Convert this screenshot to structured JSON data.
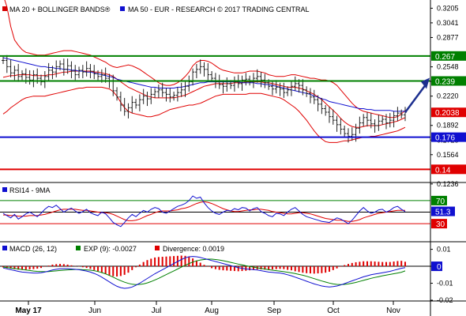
{
  "chart_data": [
    {
      "type": "line",
      "panel": "price",
      "legend": [
        {
          "text": "MA 20 + BOLLINGER BANDS",
          "color": "#d40000",
          "marker": "®"
        },
        {
          "text": "MA 50 - EUR - RESEARCH © 2017 TRADING CENTRAL",
          "color": "#1010d0"
        }
      ],
      "x_labels": [
        "May 17",
        "Jun",
        "Jul",
        "Aug",
        "Sep",
        "Oct",
        "Nov"
      ],
      "y_ticks": [
        "0.3205",
        "0.3041",
        "0.2877",
        "0.2548",
        "0.2384",
        "0.2220",
        "0.1892",
        "0.1728",
        "0.1564",
        "0.1236"
      ],
      "ylim": [
        0.127,
        0.3297
      ],
      "levels": [
        {
          "value": 0.267,
          "label": "0.267",
          "color": "#008000",
          "tag_bg": "#008000"
        },
        {
          "value": 0.239,
          "label": "0.239",
          "color": "#008000",
          "tag_bg": "#008000"
        },
        {
          "value": 0.176,
          "label": "0.176",
          "color": "#1010d0",
          "tag_bg": "#1010d0"
        },
        {
          "value": 0.14,
          "label": "0.14",
          "color": "#e00000",
          "tag_bg": "#e00000"
        }
      ],
      "current_tag": {
        "value": 0.2038,
        "label": "0.2038",
        "color": "#e00000"
      },
      "candles_close": [
        0.262,
        0.255,
        0.248,
        0.251,
        0.244,
        0.247,
        0.243,
        0.24,
        0.246,
        0.242,
        0.238,
        0.244,
        0.251,
        0.249,
        0.255,
        0.258,
        0.252,
        0.256,
        0.25,
        0.246,
        0.251,
        0.249,
        0.253,
        0.25,
        0.247,
        0.244,
        0.246,
        0.242,
        0.239,
        0.228,
        0.221,
        0.212,
        0.205,
        0.209,
        0.215,
        0.212,
        0.218,
        0.222,
        0.219,
        0.224,
        0.227,
        0.229,
        0.226,
        0.224,
        0.221,
        0.223,
        0.226,
        0.229,
        0.233,
        0.238,
        0.249,
        0.252,
        0.255,
        0.252,
        0.246,
        0.242,
        0.238,
        0.235,
        0.233,
        0.236,
        0.234,
        0.238,
        0.236,
        0.24,
        0.241,
        0.238,
        0.242,
        0.244,
        0.24,
        0.237,
        0.233,
        0.23,
        0.232,
        0.23,
        0.226,
        0.229,
        0.233,
        0.236,
        0.234,
        0.229,
        0.225,
        0.221,
        0.218,
        0.213,
        0.208,
        0.204,
        0.199,
        0.195,
        0.19,
        0.185,
        0.18,
        0.177,
        0.179,
        0.186,
        0.192,
        0.198,
        0.195,
        0.191,
        0.189,
        0.194,
        0.196,
        0.192,
        0.195,
        0.2,
        0.203,
        0.201,
        0.204
      ],
      "ma20": [
        0.243,
        0.244,
        0.245,
        0.245,
        0.246,
        0.246,
        0.246,
        0.246,
        0.245,
        0.245,
        0.245,
        0.245,
        0.246,
        0.246,
        0.247,
        0.248,
        0.249,
        0.249,
        0.25,
        0.25,
        0.25,
        0.25,
        0.25,
        0.25,
        0.249,
        0.249,
        0.248,
        0.247,
        0.246,
        0.244,
        0.241,
        0.238,
        0.235,
        0.232,
        0.23,
        0.228,
        0.226,
        0.224,
        0.222,
        0.221,
        0.22,
        0.22,
        0.22,
        0.22,
        0.22,
        0.22,
        0.221,
        0.222,
        0.223,
        0.225,
        0.227,
        0.229,
        0.231,
        0.233,
        0.234,
        0.235,
        0.236,
        0.236,
        0.236,
        0.236,
        0.236,
        0.237,
        0.237,
        0.237,
        0.238,
        0.238,
        0.238,
        0.238,
        0.238,
        0.237,
        0.237,
        0.236,
        0.235,
        0.234,
        0.233,
        0.232,
        0.232,
        0.232,
        0.231,
        0.23,
        0.228,
        0.226,
        0.224,
        0.221,
        0.218,
        0.214,
        0.21,
        0.206,
        0.202,
        0.197,
        0.193,
        0.19,
        0.188,
        0.187,
        0.187,
        0.188,
        0.189,
        0.189,
        0.189,
        0.189,
        0.19,
        0.191,
        0.192,
        0.193,
        0.194,
        0.196,
        0.198
      ],
      "ma50": [
        0.265,
        0.264,
        0.263,
        0.262,
        0.261,
        0.26,
        0.259,
        0.258,
        0.257,
        0.256,
        0.255,
        0.255,
        0.254,
        0.254,
        0.253,
        0.253,
        0.252,
        0.252,
        0.251,
        0.251,
        0.25,
        0.25,
        0.249,
        0.249,
        0.248,
        0.247,
        0.246,
        0.245,
        0.244,
        0.243,
        0.241,
        0.24,
        0.239,
        0.238,
        0.237,
        0.236,
        0.235,
        0.234,
        0.233,
        0.232,
        0.232,
        0.231,
        0.231,
        0.231,
        0.231,
        0.231,
        0.232,
        0.232,
        0.233,
        0.234,
        0.235,
        0.236,
        0.237,
        0.237,
        0.238,
        0.238,
        0.238,
        0.238,
        0.238,
        0.238,
        0.238,
        0.238,
        0.238,
        0.237,
        0.237,
        0.237,
        0.237,
        0.236,
        0.236,
        0.235,
        0.235,
        0.234,
        0.233,
        0.232,
        0.231,
        0.23,
        0.229,
        0.228,
        0.227,
        0.226,
        0.225,
        0.224,
        0.222,
        0.221,
        0.219,
        0.218,
        0.216,
        0.215,
        0.214,
        0.213,
        0.212,
        0.211,
        0.21,
        0.209,
        0.208,
        0.208,
        0.207,
        0.207,
        0.206,
        0.206,
        0.206,
        0.206,
        0.206,
        0.205,
        0.205,
        0.205,
        0.205
      ],
      "bb_upper": [
        0.335,
        0.322,
        0.3,
        0.285,
        0.279,
        0.274,
        0.271,
        0.27,
        0.269,
        0.268,
        0.268,
        0.268,
        0.269,
        0.27,
        0.271,
        0.272,
        0.273,
        0.273,
        0.273,
        0.272,
        0.271,
        0.27,
        0.269,
        0.268,
        0.266,
        0.264,
        0.262,
        0.26,
        0.257,
        0.255,
        0.254,
        0.255,
        0.256,
        0.257,
        0.256,
        0.254,
        0.252,
        0.249,
        0.246,
        0.243,
        0.24,
        0.237,
        0.235,
        0.234,
        0.234,
        0.235,
        0.237,
        0.24,
        0.244,
        0.249,
        0.256,
        0.26,
        0.262,
        0.262,
        0.261,
        0.259,
        0.256,
        0.253,
        0.251,
        0.25,
        0.249,
        0.248,
        0.248,
        0.248,
        0.249,
        0.25,
        0.25,
        0.25,
        0.249,
        0.248,
        0.246,
        0.245,
        0.244,
        0.244,
        0.244,
        0.245,
        0.246,
        0.246,
        0.245,
        0.244,
        0.243,
        0.242,
        0.242,
        0.241,
        0.24,
        0.24,
        0.239,
        0.237,
        0.234,
        0.229,
        0.224,
        0.219,
        0.214,
        0.21,
        0.207,
        0.205,
        0.204,
        0.203,
        0.202,
        0.201,
        0.2,
        0.199,
        0.198,
        0.198,
        0.199,
        0.202,
        0.206
      ],
      "bb_lower": [
        0.202,
        0.205,
        0.209,
        0.212,
        0.215,
        0.218,
        0.22,
        0.221,
        0.222,
        0.222,
        0.222,
        0.222,
        0.223,
        0.224,
        0.225,
        0.226,
        0.227,
        0.228,
        0.229,
        0.23,
        0.231,
        0.231,
        0.232,
        0.232,
        0.232,
        0.232,
        0.232,
        0.231,
        0.23,
        0.227,
        0.222,
        0.215,
        0.209,
        0.205,
        0.203,
        0.202,
        0.201,
        0.2,
        0.199,
        0.199,
        0.2,
        0.201,
        0.203,
        0.205,
        0.207,
        0.208,
        0.209,
        0.21,
        0.211,
        0.212,
        0.212,
        0.213,
        0.214,
        0.216,
        0.218,
        0.22,
        0.222,
        0.223,
        0.224,
        0.224,
        0.224,
        0.224,
        0.224,
        0.224,
        0.224,
        0.225,
        0.225,
        0.225,
        0.225,
        0.224,
        0.223,
        0.222,
        0.221,
        0.22,
        0.218,
        0.215,
        0.212,
        0.209,
        0.205,
        0.2,
        0.195,
        0.189,
        0.183,
        0.178,
        0.174,
        0.171,
        0.17,
        0.17,
        0.17,
        0.171,
        0.172,
        0.172,
        0.173,
        0.174,
        0.175,
        0.176,
        0.176,
        0.177,
        0.177,
        0.178,
        0.179,
        0.18,
        0.181,
        0.182,
        0.183,
        0.185,
        0.187
      ],
      "arrow": {
        "from": 0.2038,
        "to": 0.239
      }
    },
    {
      "type": "line",
      "panel": "rsi",
      "legend": [
        {
          "text": "RSI14 - 9MA",
          "color": "#1010d0"
        }
      ],
      "ylim": [
        0,
        100
      ],
      "levels": [
        {
          "value": 70,
          "label": "70",
          "color": "#008000"
        },
        {
          "value": 30,
          "label": "30",
          "color": "#e00000"
        }
      ],
      "current_tag": {
        "value": 51.3,
        "label": "51.3",
        "color": "#1010d0"
      },
      "rsi": [
        48,
        44,
        40,
        46,
        38,
        42,
        47,
        50,
        46,
        42,
        48,
        55,
        60,
        58,
        62,
        56,
        50,
        54,
        57,
        52,
        48,
        51,
        55,
        49,
        46,
        44,
        50,
        47,
        40,
        32,
        28,
        25,
        32,
        40,
        46,
        42,
        48,
        53,
        50,
        55,
        58,
        56,
        50,
        48,
        52,
        56,
        60,
        62,
        65,
        70,
        78,
        74,
        76,
        66,
        58,
        52,
        48,
        46,
        50,
        53,
        52,
        56,
        54,
        58,
        57,
        52,
        56,
        58,
        51,
        48,
        44,
        42,
        48,
        47,
        44,
        50,
        55,
        58,
        52,
        46,
        42,
        40,
        38,
        36,
        34,
        33,
        32,
        36,
        40,
        38,
        34,
        30,
        36,
        44,
        52,
        58,
        52,
        48,
        50,
        54,
        55,
        50,
        53,
        58,
        60,
        55,
        51
      ],
      "rsi_ma": [
        45,
        45,
        44,
        44,
        43,
        43,
        43,
        44,
        44,
        44,
        45,
        46,
        48,
        50,
        52,
        54,
        55,
        55,
        55,
        55,
        54,
        53,
        53,
        52,
        51,
        50,
        49,
        49,
        48,
        46,
        43,
        40,
        37,
        35,
        35,
        36,
        38,
        41,
        44,
        46,
        49,
        51,
        52,
        52,
        52,
        53,
        54,
        56,
        57,
        59,
        62,
        65,
        67,
        68,
        67,
        65,
        62,
        59,
        56,
        54,
        52,
        51,
        51,
        52,
        53,
        54,
        54,
        55,
        55,
        54,
        53,
        51,
        50,
        49,
        48,
        47,
        47,
        48,
        49,
        49,
        48,
        47,
        45,
        43,
        41,
        39,
        38,
        37,
        36,
        36,
        35,
        34,
        34,
        35,
        37,
        40,
        42,
        44,
        46,
        48,
        49,
        50,
        51,
        52,
        53,
        53,
        53
      ]
    },
    {
      "type": "line",
      "panel": "macd",
      "legend": [
        {
          "text": "MACD (26, 12)",
          "color": "#1010d0"
        },
        {
          "text": "EXP (9): -0.0027",
          "color": "#008000"
        },
        {
          "text": "Divergence: 0.0019",
          "color": "#e00000"
        }
      ],
      "y_ticks": [
        "0.01",
        "0",
        "-0.01",
        "-0.02"
      ],
      "ylim": [
        -0.02,
        0.014
      ],
      "current_tag": {
        "value": 0,
        "label": "0",
        "color": "#1010d0"
      },
      "macd": [
        -0.001,
        -0.0015,
        -0.002,
        -0.0025,
        -0.003,
        -0.0034,
        -0.0036,
        -0.0038,
        -0.004,
        -0.004,
        -0.0038,
        -0.0034,
        -0.0028,
        -0.0022,
        -0.0018,
        -0.0015,
        -0.0014,
        -0.0014,
        -0.0016,
        -0.0018,
        -0.002,
        -0.0024,
        -0.0028,
        -0.0034,
        -0.0042,
        -0.0052,
        -0.0064,
        -0.0078,
        -0.0092,
        -0.0106,
        -0.0118,
        -0.0126,
        -0.013,
        -0.0128,
        -0.0122,
        -0.0112,
        -0.01,
        -0.0086,
        -0.0072,
        -0.0058,
        -0.0044,
        -0.0032,
        -0.002,
        -0.0008,
        0.0004,
        0.0016,
        0.0028,
        0.004,
        0.005,
        0.0056,
        0.0058,
        0.0056,
        0.0052,
        0.0046,
        0.004,
        0.0034,
        0.0028,
        0.0022,
        0.0016,
        0.001,
        0.0004,
        -0.0002,
        -0.0008,
        -0.0012,
        -0.0016,
        -0.0018,
        -0.002,
        -0.0022,
        -0.0026,
        -0.003,
        -0.0034,
        -0.0036,
        -0.0038,
        -0.004,
        -0.0044,
        -0.005,
        -0.0056,
        -0.0064,
        -0.0072,
        -0.008,
        -0.0088,
        -0.0096,
        -0.0104,
        -0.011,
        -0.0116,
        -0.012,
        -0.0122,
        -0.012,
        -0.0116,
        -0.011,
        -0.0102,
        -0.0094,
        -0.0086,
        -0.0078,
        -0.007,
        -0.0062,
        -0.0056,
        -0.005,
        -0.0046,
        -0.0042,
        -0.0038,
        -0.0034,
        -0.003,
        -0.0024,
        -0.0018,
        -0.0012,
        -0.0008
      ],
      "signal": [
        -0.0005,
        -0.0007,
        -0.001,
        -0.0013,
        -0.0016,
        -0.0019,
        -0.0022,
        -0.0025,
        -0.0028,
        -0.003,
        -0.0031,
        -0.0032,
        -0.0031,
        -0.0029,
        -0.0027,
        -0.0025,
        -0.0023,
        -0.0021,
        -0.002,
        -0.0019,
        -0.0019,
        -0.002,
        -0.0021,
        -0.0023,
        -0.0026,
        -0.0031,
        -0.0037,
        -0.0045,
        -0.0054,
        -0.0064,
        -0.0075,
        -0.0085,
        -0.0094,
        -0.0101,
        -0.0106,
        -0.0108,
        -0.0107,
        -0.0104,
        -0.0098,
        -0.009,
        -0.0081,
        -0.0071,
        -0.006,
        -0.0049,
        -0.0038,
        -0.0027,
        -0.0016,
        -0.0005,
        0.0006,
        0.0016,
        0.0025,
        0.0032,
        0.0037,
        0.004,
        0.0042,
        0.0042,
        0.004,
        0.0037,
        0.0033,
        0.0028,
        0.0023,
        0.0018,
        0.0013,
        0.0008,
        0.0003,
        -0.0001,
        -0.0005,
        -0.0009,
        -0.0013,
        -0.0016,
        -0.002,
        -0.0023,
        -0.0026,
        -0.0029,
        -0.0032,
        -0.0035,
        -0.0039,
        -0.0043,
        -0.0048,
        -0.0053,
        -0.0059,
        -0.0066,
        -0.0073,
        -0.008,
        -0.0087,
        -0.0093,
        -0.0099,
        -0.0104,
        -0.0107,
        -0.0108,
        -0.0107,
        -0.0104,
        -0.01,
        -0.0095,
        -0.0089,
        -0.0083,
        -0.0077,
        -0.0071,
        -0.0066,
        -0.0061,
        -0.0056,
        -0.0052,
        -0.0048,
        -0.0044,
        -0.004,
        -0.0035,
        -0.0027
      ]
    }
  ]
}
